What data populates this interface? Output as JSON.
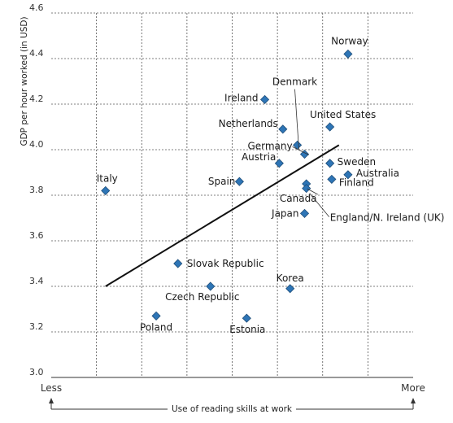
{
  "chart_data": {
    "type": "scatter",
    "ylabel": "GDP per hour worked (in USD)",
    "xlabel": "Use of reading skills at work",
    "x_left_label": "Less",
    "x_right_label": "More",
    "ylim": [
      3.0,
      4.6
    ],
    "yticks": [
      "3.0",
      "3.2",
      "3.4",
      "3.6",
      "3.8",
      "4.0",
      "4.2",
      "4.4",
      "4.6"
    ],
    "xlim": [
      0,
      10
    ],
    "grid": true,
    "marker_color": "#2e75b6",
    "points": [
      {
        "label": "Norway",
        "x": 8.2,
        "y": 4.42
      },
      {
        "label": "Denmark",
        "x": 7.0,
        "y": 3.98
      },
      {
        "label": "Ireland",
        "x": 5.9,
        "y": 4.22
      },
      {
        "label": "United States",
        "x": 7.7,
        "y": 4.1
      },
      {
        "label": "Netherlands",
        "x": 6.4,
        "y": 4.09
      },
      {
        "label": "Germany",
        "x": 6.8,
        "y": 4.02
      },
      {
        "label": "Austria",
        "x": 6.3,
        "y": 3.94
      },
      {
        "label": "Sweden",
        "x": 7.7,
        "y": 3.94
      },
      {
        "label": "Australia",
        "x": 8.2,
        "y": 3.89
      },
      {
        "label": "Finland",
        "x": 7.75,
        "y": 3.87
      },
      {
        "label": "Spain",
        "x": 5.2,
        "y": 3.86
      },
      {
        "label": "Italy",
        "x": 1.5,
        "y": 3.82
      },
      {
        "label": "Canada",
        "x": 7.05,
        "y": 3.85
      },
      {
        "label": "England/N. Ireland (UK)",
        "x": 7.05,
        "y": 3.83
      },
      {
        "label": "Japan",
        "x": 7.0,
        "y": 3.72
      },
      {
        "label": "Slovak Republic",
        "x": 3.5,
        "y": 3.5
      },
      {
        "label": "Korea",
        "x": 6.6,
        "y": 3.39
      },
      {
        "label": "Czech Republic",
        "x": 4.4,
        "y": 3.4
      },
      {
        "label": "Poland",
        "x": 2.9,
        "y": 3.27
      },
      {
        "label": "Estonia",
        "x": 5.4,
        "y": 3.26
      }
    ],
    "trendline": {
      "x": [
        1.5,
        7.95
      ],
      "y": [
        3.4,
        4.02
      ]
    }
  }
}
